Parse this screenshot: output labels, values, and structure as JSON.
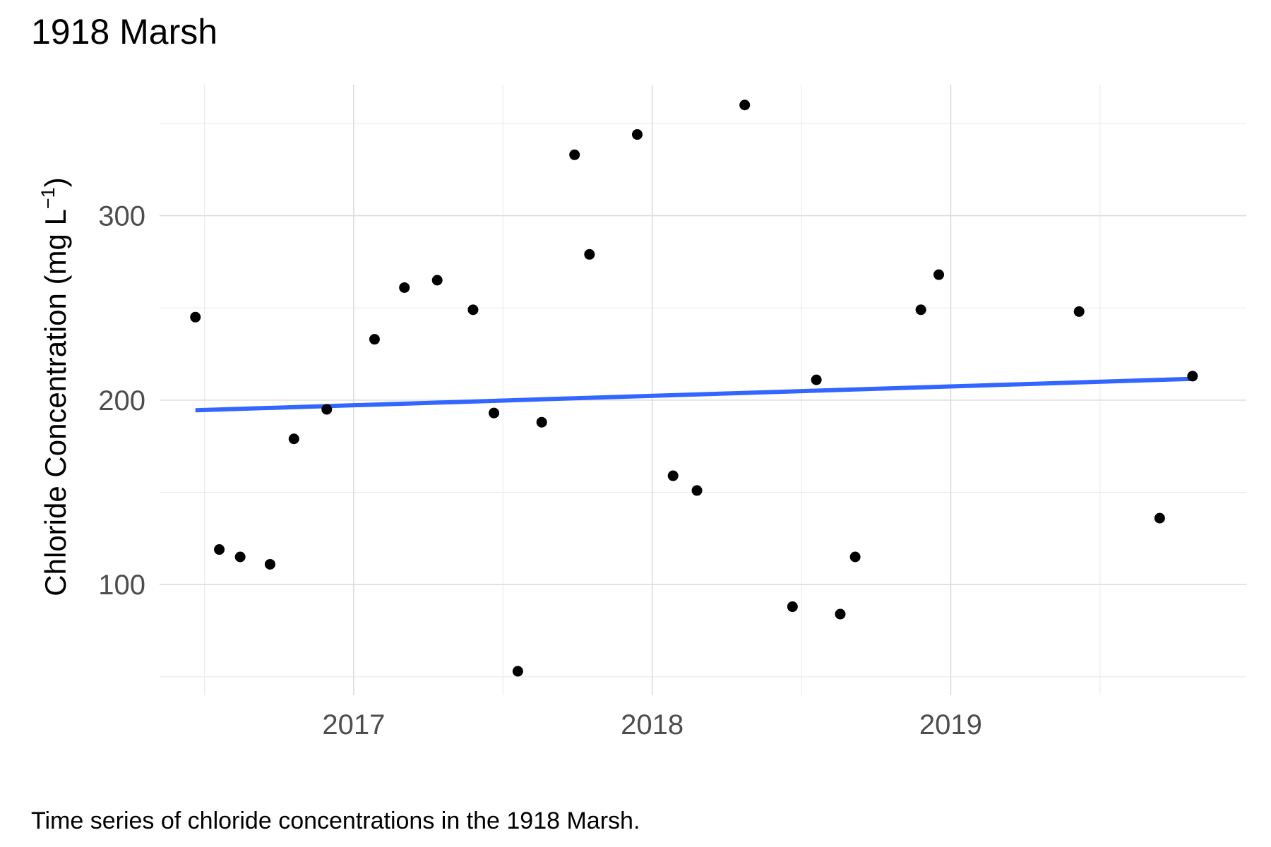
{
  "chart_data": {
    "type": "scatter",
    "title": "1918 Marsh",
    "caption": "Time series of chloride concentrations in the 1918 Marsh.",
    "ylabel": {
      "main": "Chloride Concentration (mg L",
      "superscript": "−1",
      "close": ")"
    },
    "xlabel": "",
    "x_ticks": [
      "2017",
      "2018",
      "2019"
    ],
    "y_ticks": [
      100,
      200,
      300
    ],
    "x_unit": "year (decimal)",
    "xlim": [
      2016.35,
      2019.99
    ],
    "ylim": [
      40,
      371
    ],
    "grid": true,
    "legend": "none",
    "points": [
      {
        "x": 2016.47,
        "y": 245
      },
      {
        "x": 2016.55,
        "y": 119
      },
      {
        "x": 2016.62,
        "y": 115
      },
      {
        "x": 2016.72,
        "y": 111
      },
      {
        "x": 2016.8,
        "y": 179
      },
      {
        "x": 2016.91,
        "y": 195
      },
      {
        "x": 2017.07,
        "y": 233
      },
      {
        "x": 2017.17,
        "y": 261
      },
      {
        "x": 2017.28,
        "y": 265
      },
      {
        "x": 2017.4,
        "y": 249
      },
      {
        "x": 2017.47,
        "y": 193
      },
      {
        "x": 2017.55,
        "y": 53
      },
      {
        "x": 2017.63,
        "y": 188
      },
      {
        "x": 2017.74,
        "y": 333
      },
      {
        "x": 2017.79,
        "y": 279
      },
      {
        "x": 2017.95,
        "y": 344
      },
      {
        "x": 2018.07,
        "y": 159
      },
      {
        "x": 2018.15,
        "y": 151
      },
      {
        "x": 2018.31,
        "y": 360
      },
      {
        "x": 2018.47,
        "y": 88
      },
      {
        "x": 2018.55,
        "y": 211
      },
      {
        "x": 2018.63,
        "y": 84
      },
      {
        "x": 2018.68,
        "y": 115
      },
      {
        "x": 2018.9,
        "y": 249
      },
      {
        "x": 2018.96,
        "y": 268
      },
      {
        "x": 2019.43,
        "y": 248
      },
      {
        "x": 2019.7,
        "y": 136
      },
      {
        "x": 2019.81,
        "y": 213
      }
    ],
    "trend_line": {
      "color": "#3366ff",
      "x": [
        2016.47,
        2019.8
      ],
      "y": [
        194.5,
        211.5
      ]
    },
    "point_color": "#000000"
  }
}
